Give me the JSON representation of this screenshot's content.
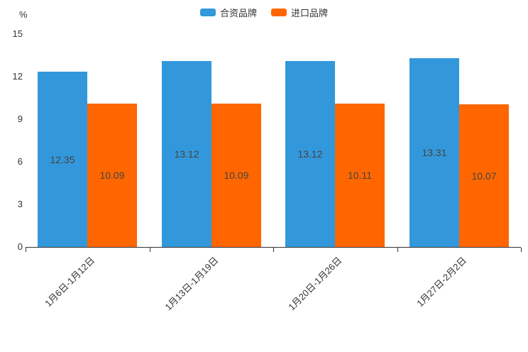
{
  "chart_data": {
    "type": "bar",
    "title": "",
    "ylabel": "%",
    "xlabel": "",
    "categories": [
      "1月6日-1月12日",
      "1月13日-1月19日",
      "1月20日-1月26日",
      "1月27日-2月2日"
    ],
    "series": [
      {
        "name": "合资品牌",
        "color": "#3398db",
        "values": [
          12.35,
          13.12,
          13.12,
          13.31
        ]
      },
      {
        "name": "进口品牌",
        "color": "#ff6600",
        "values": [
          10.09,
          10.09,
          10.11,
          10.07
        ]
      }
    ],
    "ylim": [
      0,
      15
    ],
    "yticks": [
      0,
      3,
      6,
      9,
      12,
      15
    ],
    "legend_position": "top-center",
    "grid": false,
    "value_labels": "inside-center",
    "colors": {
      "axis_text": "#333333",
      "value_label_text": "#444444",
      "axis_line": "#333333"
    }
  }
}
